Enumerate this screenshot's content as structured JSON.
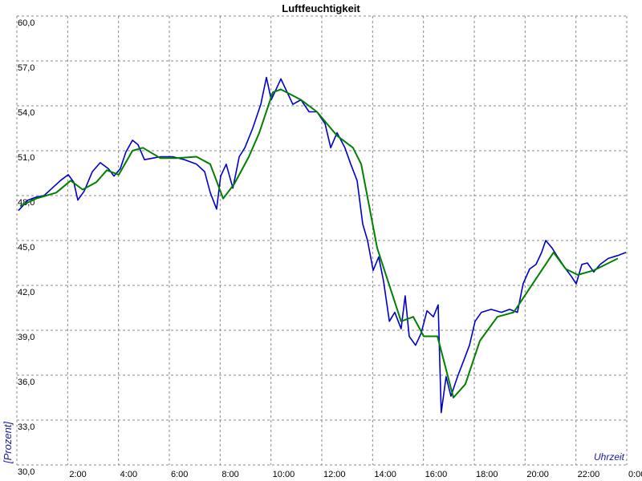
{
  "chart_data": {
    "type": "line",
    "title": "Luftfeuchtigkeit",
    "x_label": "Uhrzeit",
    "y_label": "[Prozent]",
    "xlim": [
      0,
      24
    ],
    "ylim": [
      30,
      60
    ],
    "grid": true,
    "xticks": [
      {
        "value": 2,
        "label": "2:00"
      },
      {
        "value": 4,
        "label": "4:00"
      },
      {
        "value": 6,
        "label": "6:00"
      },
      {
        "value": 8,
        "label": "8:00"
      },
      {
        "value": 10,
        "label": "10:00"
      },
      {
        "value": 12,
        "label": "12:00"
      },
      {
        "value": 14,
        "label": "14:00"
      },
      {
        "value": 16,
        "label": "16:00"
      },
      {
        "value": 18,
        "label": "18:00"
      },
      {
        "value": 20,
        "label": "20:00"
      },
      {
        "value": 22,
        "label": "22:00"
      },
      {
        "value": 24,
        "label": "0:00"
      }
    ],
    "yticks": [
      {
        "value": 30,
        "label": "30,0"
      },
      {
        "value": 33,
        "label": "33,0"
      },
      {
        "value": 36,
        "label": "36,0"
      },
      {
        "value": 39,
        "label": "39,0"
      },
      {
        "value": 42,
        "label": "42,0"
      },
      {
        "value": 45,
        "label": "45,0"
      },
      {
        "value": 48,
        "label": "48,0"
      },
      {
        "value": 51,
        "label": "51,0"
      },
      {
        "value": 54,
        "label": "54,0"
      },
      {
        "value": 57,
        "label": "57,0"
      },
      {
        "value": 60,
        "label": "60,0"
      }
    ],
    "series": [
      {
        "color": "#0000cc",
        "x": [
          0.06,
          0.44,
          0.76,
          1.07,
          1.39,
          1.71,
          2.02,
          2.24,
          2.4,
          2.65,
          2.97,
          3.28,
          3.6,
          3.82,
          4.07,
          4.29,
          4.55,
          4.77,
          5.02,
          5.34,
          5.65,
          6.13,
          6.6,
          7.07,
          7.39,
          7.61,
          7.86,
          8.02,
          8.24,
          8.5,
          8.75,
          8.97,
          9.28,
          9.6,
          9.82,
          10.01,
          10.23,
          10.39,
          10.64,
          10.86,
          11.18,
          11.5,
          11.81,
          12.13,
          12.35,
          12.6,
          12.91,
          13.14,
          13.39,
          13.61,
          13.8,
          14.02,
          14.24,
          14.43,
          14.66,
          14.87,
          15.12,
          15.28,
          15.44,
          15.69,
          15.91,
          16.14,
          16.39,
          16.58,
          16.7,
          16.89,
          17.08,
          17.34,
          17.59,
          17.81,
          18.03,
          18.28,
          18.66,
          19.07,
          19.39,
          19.7,
          19.92,
          20.18,
          20.43,
          20.65,
          20.81,
          21.06,
          21.28,
          21.6,
          21.82,
          22.01,
          22.23,
          22.45,
          22.7,
          22.95,
          23.27,
          23.65,
          23.97
        ],
        "values": [
          47.0,
          47.7,
          47.9,
          48.0,
          48.5,
          49.0,
          49.4,
          48.9,
          47.7,
          48.3,
          49.6,
          50.2,
          49.8,
          49.3,
          49.8,
          50.9,
          51.7,
          51.4,
          50.4,
          50.5,
          50.6,
          50.6,
          50.4,
          50.1,
          49.6,
          48.2,
          47.1,
          49.3,
          50.1,
          48.5,
          50.6,
          51.2,
          52.5,
          54.1,
          55.9,
          54.4,
          55.2,
          55.8,
          54.9,
          54.1,
          54.4,
          53.6,
          53.6,
          52.8,
          51.2,
          52.2,
          51.2,
          50.1,
          49.0,
          46.1,
          45.0,
          43.0,
          43.9,
          42.3,
          39.6,
          40.2,
          39.1,
          41.3,
          38.6,
          38.0,
          38.8,
          40.3,
          39.9,
          40.7,
          33.5,
          35.9,
          34.6,
          35.9,
          37.0,
          38.0,
          39.6,
          40.2,
          40.4,
          40.2,
          40.4,
          40.2,
          42.1,
          43.1,
          43.4,
          44.2,
          45.0,
          44.5,
          43.9,
          43.1,
          42.6,
          42.1,
          43.4,
          43.5,
          42.9,
          43.4,
          43.8,
          44.0,
          44.2
        ]
      },
      {
        "color": "#008000",
        "x": [
          0.13,
          0.76,
          1.55,
          2.12,
          2.59,
          3.13,
          3.54,
          4.01,
          4.55,
          4.96,
          5.65,
          6.28,
          7.07,
          7.61,
          8.12,
          8.56,
          9.13,
          9.54,
          10.07,
          10.39,
          11.18,
          11.81,
          12.6,
          13.23,
          13.55,
          14.18,
          15.12,
          15.6,
          16.01,
          16.55,
          17.18,
          17.65,
          18.22,
          18.91,
          19.55,
          20.18,
          21.12,
          21.6,
          22.07,
          22.7,
          23.65
        ],
        "values": [
          47.3,
          47.8,
          48.2,
          49.0,
          48.4,
          48.9,
          49.7,
          49.4,
          51.0,
          51.2,
          50.5,
          50.5,
          50.6,
          50.1,
          47.8,
          48.8,
          50.6,
          52.2,
          54.9,
          55.1,
          54.4,
          53.6,
          52.0,
          51.2,
          50.1,
          44.5,
          39.6,
          39.9,
          38.6,
          38.6,
          34.5,
          35.4,
          38.3,
          39.9,
          40.2,
          41.8,
          44.2,
          43.1,
          42.7,
          43.0,
          43.8
        ]
      }
    ]
  }
}
